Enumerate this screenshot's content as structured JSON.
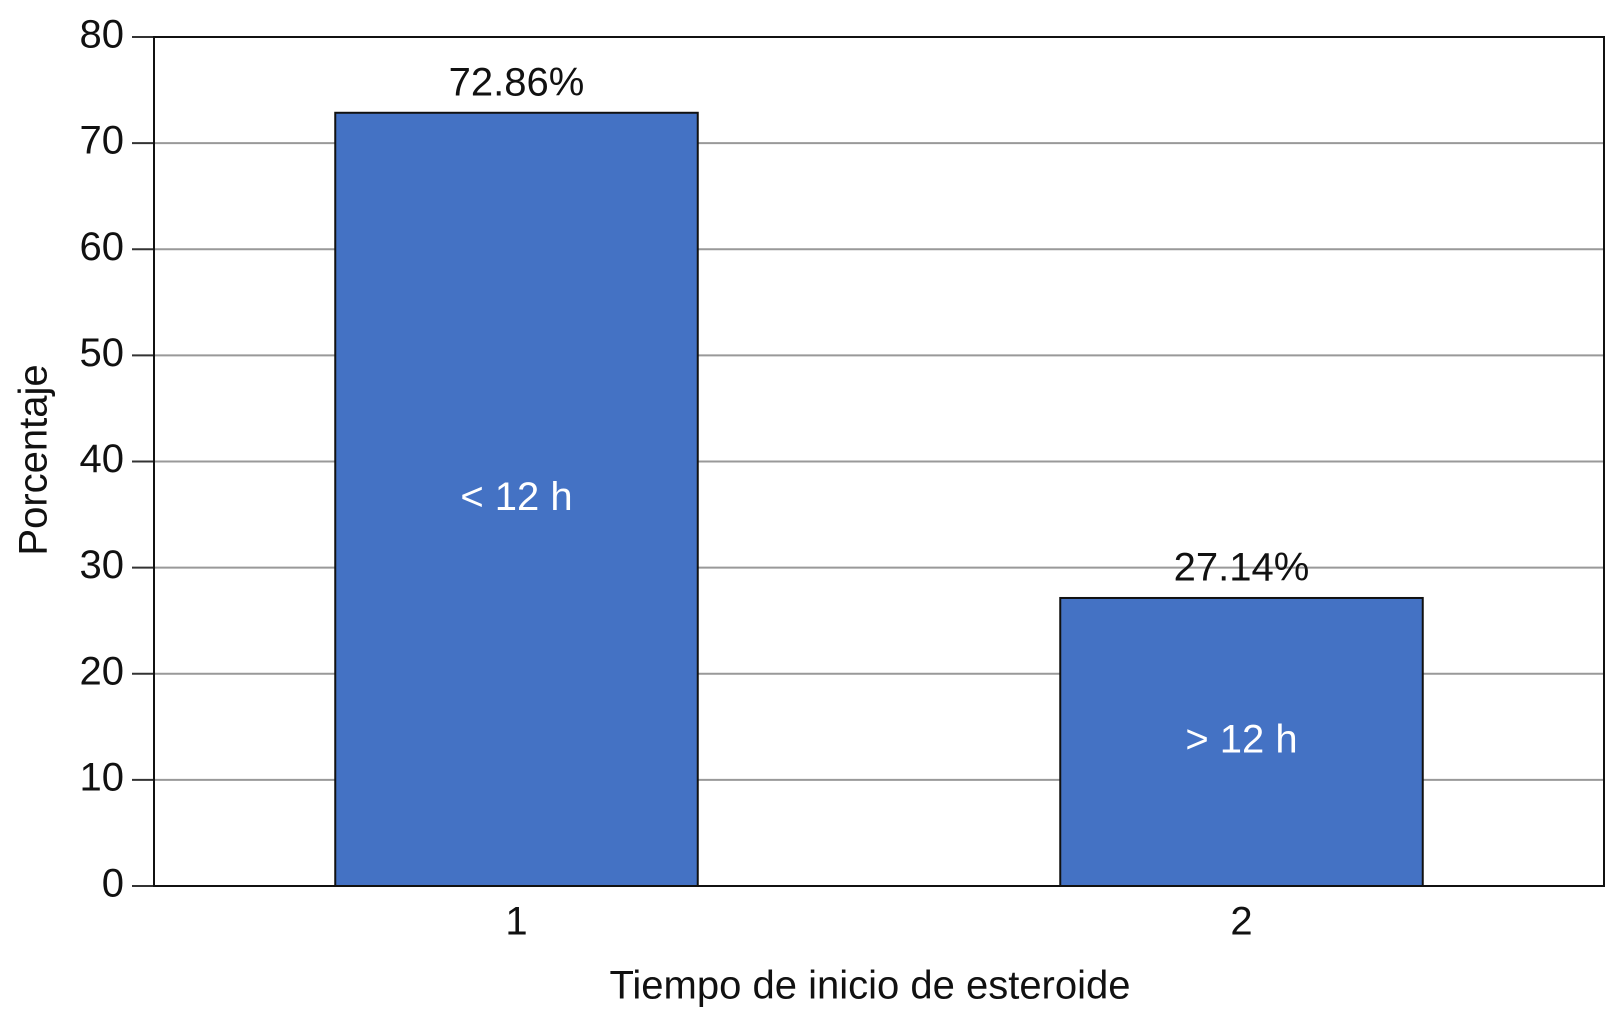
{
  "chart_data": {
    "type": "bar",
    "xlabel": "Tiempo de inicio de esteroide",
    "ylabel": "Porcentaje",
    "categories": [
      "1",
      "2"
    ],
    "values": [
      72.86,
      27.14
    ],
    "value_labels": [
      "72.86%",
      "27.14%"
    ],
    "bar_labels": [
      "< 12 h",
      "> 12 h"
    ],
    "color": "#4472c4",
    "ylim": [
      0,
      80
    ],
    "yticks": [
      0,
      10,
      20,
      30,
      40,
      50,
      60,
      70,
      80
    ],
    "grid": true
  }
}
